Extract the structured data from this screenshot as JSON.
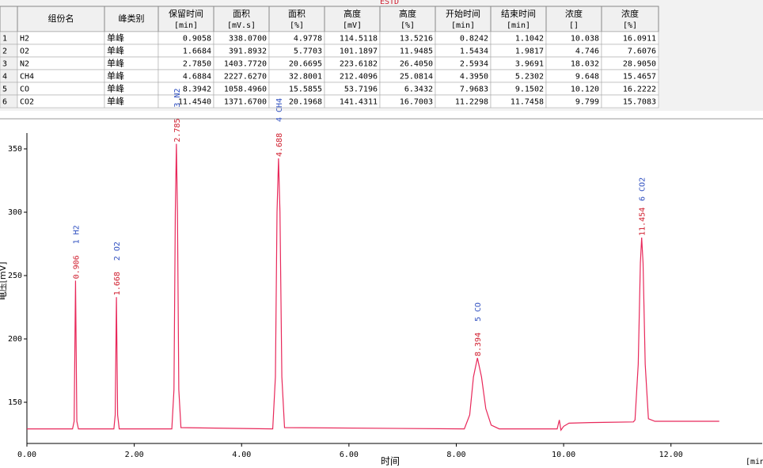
{
  "table": {
    "title": "ESTD",
    "header": [
      {
        "text": "组份名"
      },
      {
        "text": "峰类别"
      },
      {
        "text": "保留时间",
        "unit": "[min]"
      },
      {
        "text": "面积",
        "unit": "[mV.s]"
      },
      {
        "text": "面积",
        "unit": "[%]"
      },
      {
        "text": "高度",
        "unit": "[mV]"
      },
      {
        "text": "高度",
        "unit": "[%]"
      },
      {
        "text": "开始时间",
        "unit": "[min]"
      },
      {
        "text": "结束时间",
        "unit": "[min]"
      },
      {
        "text": "浓度",
        "unit": "[]"
      },
      {
        "text": "浓度",
        "unit": "[%]"
      }
    ],
    "rows": [
      [
        "1",
        "H2",
        "单峰",
        "0.9058",
        "338.0700",
        "4.9778",
        "114.5118",
        "13.5216",
        "0.8242",
        "1.1042",
        "10.038",
        "16.0911"
      ],
      [
        "2",
        "O2",
        "单峰",
        "1.6684",
        "391.8932",
        "5.7703",
        "101.1897",
        "11.9485",
        "1.5434",
        "1.9817",
        "4.746",
        "7.6076"
      ],
      [
        "3",
        "N2",
        "单峰",
        "2.7850",
        "1403.7720",
        "20.6695",
        "223.6182",
        "26.4050",
        "2.5934",
        "3.9691",
        "18.032",
        "28.9050"
      ],
      [
        "4",
        "CH4",
        "单峰",
        "4.6884",
        "2227.6270",
        "32.8001",
        "212.4096",
        "25.0814",
        "4.3950",
        "5.2302",
        "9.648",
        "15.4657"
      ],
      [
        "5",
        "CO",
        "单峰",
        "8.3942",
        "1058.4960",
        "15.5855",
        "53.7196",
        "6.3432",
        "7.9683",
        "9.1502",
        "10.120",
        "16.2222"
      ],
      [
        "6",
        "CO2",
        "单峰",
        "11.4540",
        "1371.6700",
        "20.1968",
        "141.4311",
        "16.7003",
        "11.2298",
        "11.7458",
        "9.799",
        "15.7083"
      ]
    ]
  },
  "chart_data": {
    "type": "line",
    "xlabel": "时间",
    "x_unit": "[min",
    "ylabel": "电压[mV]",
    "color": "#e8285a",
    "xlim": [
      0,
      13.7
    ],
    "ylim": [
      117.5,
      362.5
    ],
    "xticks": [
      {
        "value": 0,
        "label": "0.00"
      },
      {
        "value": 2,
        "label": "2.00"
      },
      {
        "value": 4,
        "label": "4.00"
      },
      {
        "value": 6,
        "label": "6.00"
      },
      {
        "value": 8,
        "label": "8.00"
      },
      {
        "value": 10,
        "label": "10.00"
      },
      {
        "value": 12,
        "label": "12.00"
      }
    ],
    "yticks": [
      150,
      200,
      250,
      300,
      350
    ],
    "x": [
      0,
      0.85,
      0.88,
      0.906,
      0.93,
      0.96,
      1.62,
      1.645,
      1.668,
      1.69,
      1.72,
      2.7,
      2.74,
      2.765,
      2.785,
      2.805,
      2.83,
      2.87,
      4.58,
      4.63,
      4.66,
      4.688,
      4.715,
      4.75,
      4.8,
      8.15,
      8.25,
      8.32,
      8.394,
      8.47,
      8.55,
      8.65,
      8.8,
      9.88,
      9.92,
      9.95,
      10.0,
      10.1,
      10.5,
      11.3,
      11.33,
      11.39,
      11.43,
      11.454,
      11.48,
      11.52,
      11.58,
      11.7,
      12.9
    ],
    "values": [
      129,
      129,
      135,
      246,
      135,
      129,
      129,
      140,
      233,
      140,
      129,
      129,
      160,
      300,
      354,
      300,
      160,
      130,
      129,
      170,
      300,
      342.5,
      300,
      170,
      130,
      129,
      140,
      170,
      185,
      170,
      145,
      132,
      129,
      129,
      136,
      128,
      131,
      133.5,
      134,
      134.5,
      136,
      180,
      260,
      280,
      260,
      180,
      137,
      135,
      135
    ],
    "peaks": [
      {
        "x": 0.906,
        "y": 246,
        "time": "0.906",
        "name": "1  H2"
      },
      {
        "x": 1.668,
        "y": 233,
        "time": "1.668",
        "name": "2  O2"
      },
      {
        "x": 2.785,
        "y": 354,
        "time": "2.785",
        "name": "3  N2"
      },
      {
        "x": 4.688,
        "y": 342.5,
        "time": "4.688",
        "name": "4  CH4"
      },
      {
        "x": 8.394,
        "y": 185,
        "time": "8.394",
        "name": "5  CO"
      },
      {
        "x": 11.454,
        "y": 280,
        "time": "11.454",
        "name": "6  CO2"
      }
    ]
  }
}
